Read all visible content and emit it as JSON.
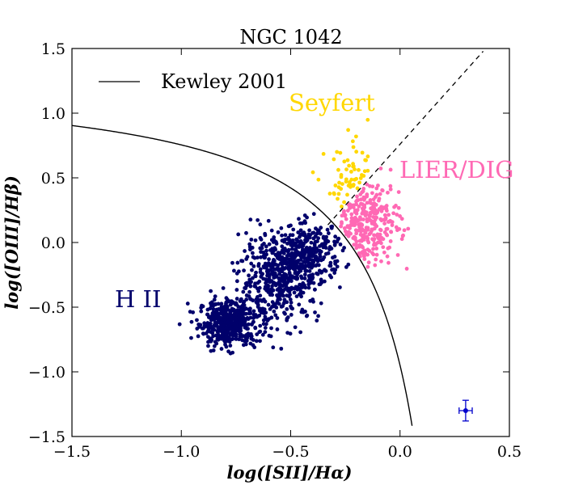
{
  "chart_data": {
    "type": "scatter",
    "title": "NGC 1042",
    "xlabel": "log([SII]/Hα)",
    "ylabel": "log([OIII]/Hβ)",
    "xlim": [
      -1.5,
      0.5
    ],
    "ylim": [
      -1.5,
      1.5
    ],
    "xticks": [
      -1.5,
      -1.0,
      -0.5,
      0.0,
      0.5
    ],
    "yticks": [
      -1.5,
      -1.0,
      -0.5,
      0.0,
      0.5,
      1.0,
      1.5
    ],
    "xtick_labels": [
      "−1.5",
      "−1.0",
      "−0.5",
      "0.0",
      "0.5"
    ],
    "ytick_labels": [
      "−1.5",
      "−1.0",
      "−0.5",
      "0.0",
      "0.5",
      "1.0",
      "1.5"
    ],
    "grid": false,
    "legend": {
      "position": "top-left",
      "entries": [
        {
          "label": "Kewley 2001",
          "style": "solid-line",
          "color": "#000000"
        }
      ]
    },
    "kewley_curve": {
      "equation": "y = 1.30 + 0.72 / (x - 0.32)",
      "x_range": [
        -1.5,
        0.055
      ]
    },
    "seyfert_liner_line": {
      "equation": "y = 1.89 x + 0.76",
      "style": "dashed",
      "x_range": [
        -0.33,
        0.38
      ]
    },
    "regions": [
      {
        "name": "H II",
        "label": "H II",
        "color": "#00006b",
        "count": 1250,
        "clusters": [
          {
            "cx": -0.78,
            "cy": -0.62,
            "sx": 0.07,
            "sy": 0.09,
            "n": 500
          },
          {
            "cx": -0.55,
            "cy": -0.28,
            "sx": 0.09,
            "sy": 0.16,
            "n": 450
          },
          {
            "cx": -0.42,
            "cy": -0.08,
            "sx": 0.08,
            "sy": 0.11,
            "n": 300
          }
        ]
      },
      {
        "name": "Seyfert",
        "label": "Seyfert",
        "color": "#ffd700",
        "count": 60,
        "clusters": [
          {
            "cx": -0.22,
            "cy": 0.42,
            "sx": 0.06,
            "sy": 0.16,
            "n": 60
          }
        ]
      },
      {
        "name": "LIER/DIG",
        "label": "LIER/DIG",
        "color": "#ff69b4",
        "count": 300,
        "clusters": [
          {
            "cx": -0.16,
            "cy": 0.15,
            "sx": 0.08,
            "sy": 0.17,
            "n": 300
          }
        ]
      }
    ],
    "error_bar": {
      "x": 0.3,
      "y": -1.3,
      "xerr": 0.03,
      "yerr": 0.08,
      "color": "#0000cc"
    }
  }
}
